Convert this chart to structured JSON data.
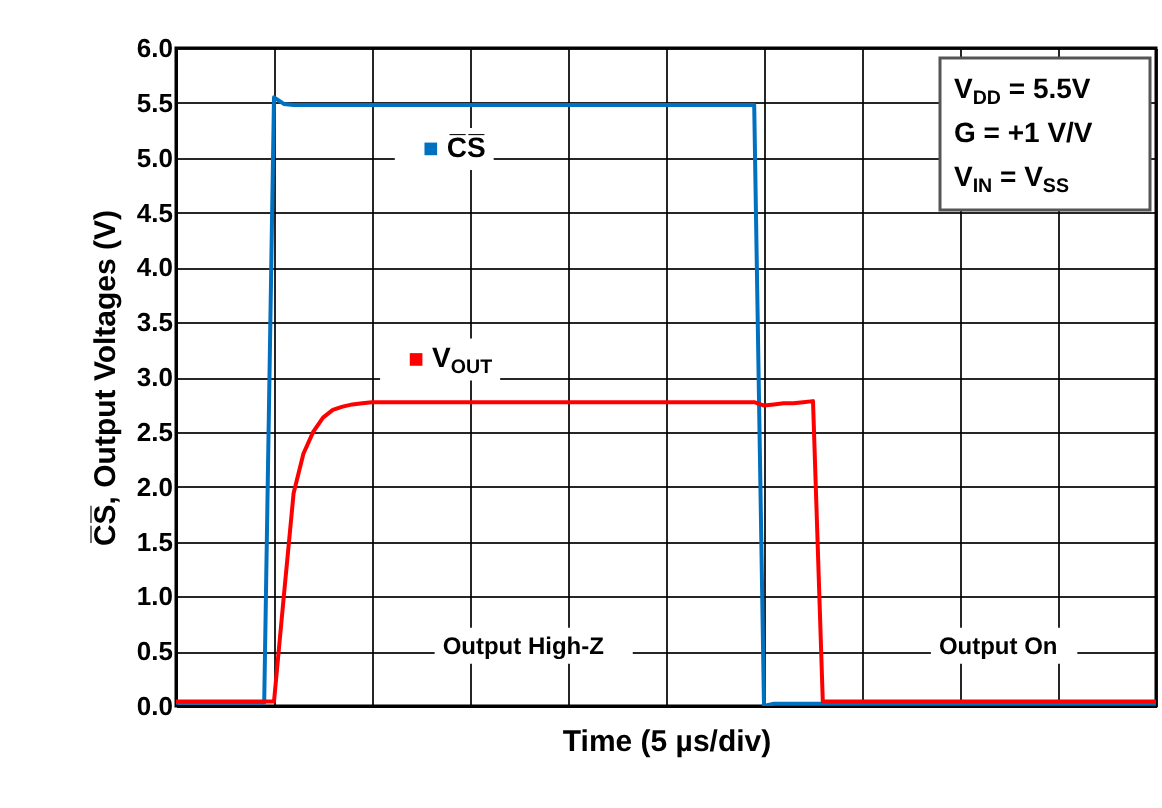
{
  "chart_data": {
    "type": "line",
    "xlabel": "Time (5 µs/div)",
    "ylabel": "C̅S̅, Output Voltages (V)",
    "categories": [
      null,
      null,
      null,
      null,
      null,
      null,
      null,
      null,
      null,
      null,
      null,
      null,
      null,
      null,
      null,
      null,
      null,
      null,
      null,
      null,
      null,
      null,
      null,
      null,
      null,
      null,
      null,
      null,
      null,
      null,
      null,
      null,
      null,
      null,
      null,
      null,
      null,
      null,
      null,
      null,
      null,
      null,
      null,
      null,
      null,
      null,
      null,
      null,
      null,
      null,
      null,
      null,
      null,
      null,
      null,
      null,
      null,
      null,
      null,
      null,
      null,
      null,
      null,
      null,
      null,
      null,
      null,
      null,
      null,
      null,
      null,
      null,
      null,
      null,
      null,
      null,
      null,
      null,
      null,
      null,
      null,
      null,
      null,
      null,
      null,
      null,
      null,
      null,
      null,
      null,
      null,
      null,
      null,
      null,
      null,
      null,
      null,
      null,
      null,
      null,
      null
    ],
    "series": [
      {
        "name": "C̅S̅",
        "color": "#0070c0",
        "values": [
          0.03,
          0.03,
          0.03,
          0.03,
          0.03,
          0.03,
          0.03,
          0.03,
          0.03,
          0.03,
          5.55,
          5.49,
          5.48,
          5.48,
          5.48,
          5.48,
          5.48,
          5.48,
          5.48,
          5.48,
          5.48,
          5.48,
          5.48,
          5.48,
          5.48,
          5.48,
          5.48,
          5.48,
          5.48,
          5.48,
          5.48,
          5.48,
          5.48,
          5.48,
          5.48,
          5.48,
          5.48,
          5.48,
          5.48,
          5.48,
          5.48,
          5.48,
          5.48,
          5.48,
          5.48,
          5.48,
          5.48,
          5.48,
          5.48,
          5.48,
          5.48,
          5.48,
          5.48,
          5.48,
          5.48,
          5.48,
          5.48,
          5.48,
          5.48,
          5.48,
          0.0,
          0.02,
          0.02,
          0.02,
          0.02,
          0.02,
          0.02,
          0.02,
          0.02,
          0.02,
          0.02,
          0.02,
          0.02,
          0.02,
          0.02,
          0.02,
          0.02,
          0.02,
          0.02,
          0.02,
          0.02,
          0.02,
          0.02,
          0.02,
          0.02,
          0.02,
          0.02,
          0.02,
          0.02,
          0.02,
          0.02,
          0.02,
          0.02,
          0.02,
          0.02,
          0.02,
          0.02,
          0.02,
          0.02,
          0.02,
          0.02
        ]
      },
      {
        "name": "V$_{OUT}$",
        "color": "#ff0000",
        "values": [
          0.04,
          0.04,
          0.04,
          0.04,
          0.04,
          0.04,
          0.04,
          0.04,
          0.04,
          0.04,
          0.04,
          1.0,
          1.94,
          2.3,
          2.5,
          2.63,
          2.7,
          2.73,
          2.75,
          2.76,
          2.77,
          2.77,
          2.77,
          2.77,
          2.77,
          2.77,
          2.77,
          2.77,
          2.77,
          2.77,
          2.77,
          2.77,
          2.77,
          2.77,
          2.77,
          2.77,
          2.77,
          2.77,
          2.77,
          2.77,
          2.77,
          2.77,
          2.77,
          2.77,
          2.77,
          2.77,
          2.77,
          2.77,
          2.77,
          2.77,
          2.77,
          2.77,
          2.77,
          2.77,
          2.77,
          2.77,
          2.77,
          2.77,
          2.77,
          2.77,
          2.74,
          2.75,
          2.76,
          2.76,
          2.77,
          2.78,
          0.04,
          0.04,
          0.04,
          0.04,
          0.04,
          0.04,
          0.04,
          0.04,
          0.04,
          0.04,
          0.04,
          0.04,
          0.04,
          0.04,
          0.04,
          0.04,
          0.04,
          0.04,
          0.04,
          0.04,
          0.04,
          0.04,
          0.04,
          0.04,
          0.04,
          0.04,
          0.04,
          0.04,
          0.04,
          0.04,
          0.04,
          0.04,
          0.04,
          0.04,
          0.04
        ]
      }
    ],
    "ylim": [
      0,
      6
    ],
    "yticks": [
      {
        "value": 0,
        "label": "0.0"
      },
      0.5,
      {
        "value": 1,
        "label": "1.0"
      },
      1.5,
      {
        "value": 2,
        "label": "2.0"
      },
      2.5,
      {
        "value": 3,
        "label": "3.0"
      },
      3.5,
      {
        "value": 4,
        "label": "4.0"
      },
      4.5,
      {
        "value": 5,
        "label": "5.0"
      },
      5.5,
      {
        "value": 6,
        "label": "6.0"
      }
    ],
    "tick_labels": "y",
    "grid": true,
    "legend": "top left",
    "line_style": "solid",
    "annotations": [
      "Output High-Z",
      "Output On",
      "V$_{DD}$ = 5.5V",
      "G = +1 V/V",
      "V$_{IN}$ = V$_{SS}$"
    ]
  }
}
